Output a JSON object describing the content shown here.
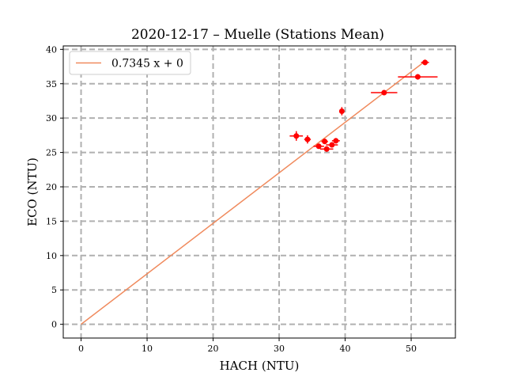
{
  "chart_data": {
    "type": "scatter",
    "title": "2020-12-17 – Muelle (Stations Mean)",
    "xlabel": "HACH (NTU)",
    "ylabel": "ECO (NTU)",
    "xlim": [
      -2.7,
      56.7
    ],
    "ylim": [
      -2.0,
      40.5
    ],
    "xticks": [
      0,
      10,
      20,
      30,
      40,
      50
    ],
    "yticks": [
      0,
      5,
      10,
      15,
      20,
      25,
      30,
      35,
      40
    ],
    "grid": true,
    "legend_position": "top-left",
    "fit_line": {
      "label": "0.7345 x + 0",
      "slope": 0.7345,
      "intercept": 0,
      "x_range": [
        0,
        52.2
      ],
      "color": "#f08a5d"
    },
    "points": [
      {
        "x": 32.6,
        "y": 27.4,
        "xerr": 1.0,
        "yerr": 0.7
      },
      {
        "x": 34.3,
        "y": 26.9,
        "xerr": 0.5,
        "yerr": 0.6
      },
      {
        "x": 36.0,
        "y": 25.9,
        "xerr": 0.8,
        "yerr": 0.3
      },
      {
        "x": 36.9,
        "y": 26.6,
        "xerr": 0.5,
        "yerr": 0.4
      },
      {
        "x": 37.2,
        "y": 25.5,
        "xerr": 1.0,
        "yerr": 0.4
      },
      {
        "x": 38.0,
        "y": 26.1,
        "xerr": 0.9,
        "yerr": 0.3
      },
      {
        "x": 38.6,
        "y": 26.7,
        "xerr": 0.6,
        "yerr": 0.4
      },
      {
        "x": 39.5,
        "y": 31.0,
        "xerr": 0.3,
        "yerr": 0.6
      },
      {
        "x": 45.9,
        "y": 33.7,
        "xerr": 2.0,
        "yerr": 0.3
      },
      {
        "x": 51.0,
        "y": 36.0,
        "xerr": 3.0,
        "yerr": 0.4
      },
      {
        "x": 52.1,
        "y": 38.1,
        "xerr": 0.6,
        "yerr": 0.4
      }
    ],
    "point_color": "#ff0000"
  }
}
